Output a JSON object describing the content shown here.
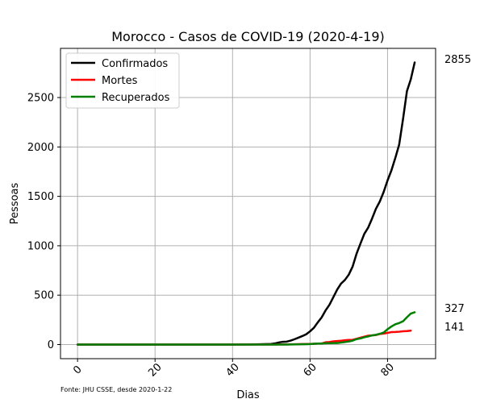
{
  "chart_data": {
    "type": "line",
    "title": "Morocco - Casos de COVID-19 (2020-4-19)",
    "xlabel": "Dias",
    "ylabel": "Pessoas",
    "source_note": "Fonte: JHU CSSE, desde 2020-1-22",
    "xlim": [
      -4.4,
      92.4
    ],
    "ylim": [
      -142.75,
      2997.75
    ],
    "x_ticks": [
      0,
      20,
      40,
      60,
      80
    ],
    "y_ticks": [
      0,
      500,
      1000,
      1500,
      2000,
      2500
    ],
    "grid": true,
    "legend_position": "top-left",
    "end_labels": [
      "2855",
      "327",
      "141"
    ],
    "series": [
      {
        "name": "Confirmados",
        "color": "#000000",
        "points": [
          [
            0,
            0
          ],
          [
            40,
            0
          ],
          [
            44,
            1
          ],
          [
            46,
            2
          ],
          [
            48,
            4
          ],
          [
            50,
            6
          ],
          [
            51,
            12
          ],
          [
            52,
            22
          ],
          [
            53,
            28
          ],
          [
            54,
            30
          ],
          [
            55,
            40
          ],
          [
            56,
            54
          ],
          [
            57,
            70
          ],
          [
            58,
            86
          ],
          [
            59,
            104
          ],
          [
            60,
            134
          ],
          [
            61,
            170
          ],
          [
            62,
            225
          ],
          [
            63,
            275
          ],
          [
            64,
            345
          ],
          [
            65,
            402
          ],
          [
            66,
            479
          ],
          [
            67,
            556
          ],
          [
            68,
            617
          ],
          [
            69,
            654
          ],
          [
            70,
            708
          ],
          [
            71,
            791
          ],
          [
            72,
            919
          ],
          [
            73,
            1021
          ],
          [
            74,
            1120
          ],
          [
            75,
            1184
          ],
          [
            76,
            1275
          ],
          [
            77,
            1374
          ],
          [
            78,
            1448
          ],
          [
            79,
            1545
          ],
          [
            80,
            1661
          ],
          [
            81,
            1763
          ],
          [
            82,
            1888
          ],
          [
            83,
            2024
          ],
          [
            84,
            2283
          ],
          [
            85,
            2564
          ],
          [
            86,
            2685
          ],
          [
            87,
            2855
          ]
        ]
      },
      {
        "name": "Mortes",
        "color": "#ff0000",
        "points": [
          [
            0,
            0
          ],
          [
            51,
            0
          ],
          [
            52,
            1
          ],
          [
            55,
            2
          ],
          [
            56,
            3
          ],
          [
            58,
            5
          ],
          [
            60,
            6
          ],
          [
            61,
            8
          ],
          [
            62,
            10
          ],
          [
            63,
            11
          ],
          [
            64,
            23
          ],
          [
            65,
            26
          ],
          [
            66,
            33
          ],
          [
            67,
            36
          ],
          [
            68,
            39
          ],
          [
            69,
            44
          ],
          [
            70,
            47
          ],
          [
            71,
            48
          ],
          [
            72,
            59
          ],
          [
            73,
            70
          ],
          [
            74,
            80
          ],
          [
            75,
            90
          ],
          [
            76,
            93
          ],
          [
            77,
            97
          ],
          [
            78,
            107
          ],
          [
            79,
            111
          ],
          [
            80,
            118
          ],
          [
            81,
            126
          ],
          [
            82,
            127
          ],
          [
            83,
            130
          ],
          [
            84,
            135
          ],
          [
            85,
            137
          ],
          [
            86,
            141
          ]
        ]
      },
      {
        "name": "Recuperados",
        "color": "#008000",
        "points": [
          [
            0,
            0
          ],
          [
            54,
            0
          ],
          [
            55,
            1
          ],
          [
            58,
            3
          ],
          [
            60,
            5
          ],
          [
            61,
            8
          ],
          [
            62,
            10
          ],
          [
            63,
            11
          ],
          [
            64,
            13
          ],
          [
            65,
            14
          ],
          [
            66,
            15
          ],
          [
            67,
            15
          ],
          [
            68,
            20
          ],
          [
            69,
            25
          ],
          [
            70,
            31
          ],
          [
            71,
            40
          ],
          [
            72,
            55
          ],
          [
            73,
            62
          ],
          [
            74,
            74
          ],
          [
            75,
            82
          ],
          [
            76,
            93
          ],
          [
            77,
            99
          ],
          [
            78,
            109
          ],
          [
            79,
            122
          ],
          [
            80,
            155
          ],
          [
            81,
            183
          ],
          [
            82,
            205
          ],
          [
            83,
            218
          ],
          [
            84,
            236
          ],
          [
            85,
            276
          ],
          [
            86,
            314
          ],
          [
            87,
            327
          ]
        ]
      }
    ]
  }
}
